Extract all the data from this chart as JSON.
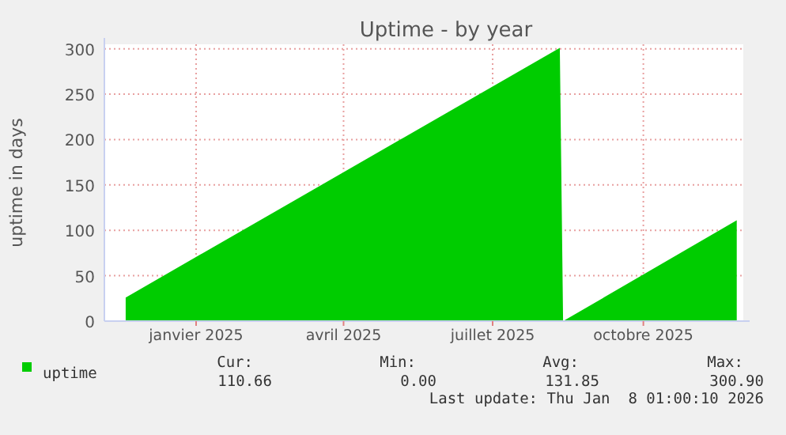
{
  "chart_data": {
    "type": "area",
    "title": "Uptime - by year",
    "ylabel": "uptime in days",
    "xlim": [
      "2024-11-06",
      "2025-12-01"
    ],
    "xticks": [
      {
        "value": "2025-01-01",
        "label": "janvier 2025"
      },
      {
        "value": "2025-04-01",
        "label": "avril 2025"
      },
      {
        "value": "2025-07-01",
        "label": "juillet 2025"
      },
      {
        "value": "2025-10-01",
        "label": "octobre 2025"
      }
    ],
    "ylim": [
      0,
      305
    ],
    "yticks": [
      0,
      50,
      100,
      150,
      200,
      250,
      300
    ],
    "grid": true,
    "legend": "bottom",
    "series": [
      {
        "name": "uptime",
        "color": "#00cc00",
        "x": [
          "2024-11-19",
          "2025-08-11",
          "2025-08-13",
          "2025-11-27"
        ],
        "values": [
          26,
          301,
          0,
          111
        ]
      }
    ],
    "annotations": [
      "Cur:",
      "Min:",
      "Avg:",
      "Max:",
      "110.66",
      "0.00",
      "131.85",
      "300.90",
      "Last update: Thu Jan  8 01:00:10 2026"
    ]
  }
}
